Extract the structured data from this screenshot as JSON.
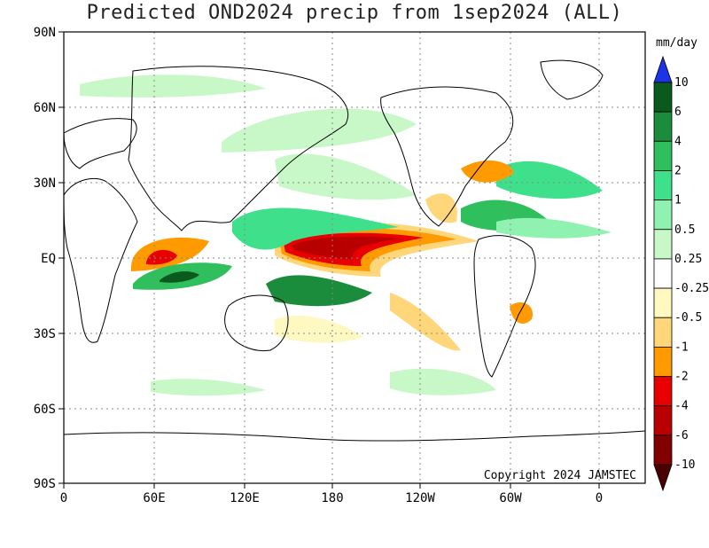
{
  "title": "Predicted OND2024 precip from 1sep2024 (ALL)",
  "copyright": "Copyright 2024 JAMSTEC",
  "lat_labels": [
    "90N",
    "60N",
    "30N",
    "EQ",
    "30S",
    "60S",
    "90S"
  ],
  "lon_labels": [
    "0",
    "60E",
    "120E",
    "180",
    "120W",
    "60W",
    "0"
  ],
  "colorbar": {
    "unit": "mm/day",
    "labels": [
      "10",
      "6",
      "4",
      "2",
      "1",
      "0.5",
      "0.25",
      "-0.25",
      "-0.5",
      "-1",
      "-2",
      "-4",
      "-6",
      "-10"
    ],
    "colors": [
      "#1c34e6",
      "#0a5a1e",
      "#1a8c3c",
      "#2fbf5c",
      "#3fe08c",
      "#8ff2b0",
      "#c8f8c8",
      "#ffffff",
      "#fff8c0",
      "#ffd67a",
      "#ff9a00",
      "#e80000",
      "#b80000",
      "#820000",
      "#4a0000"
    ]
  }
}
